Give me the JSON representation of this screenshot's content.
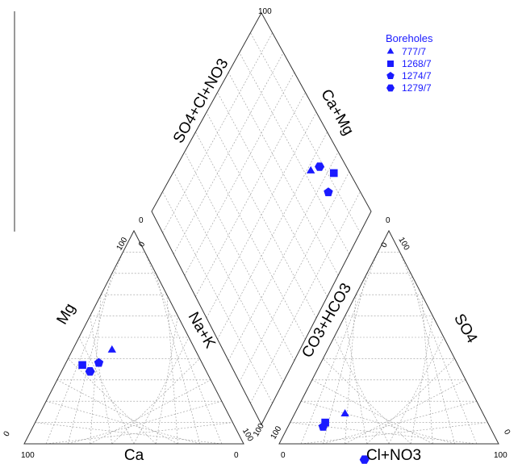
{
  "chart_data": {
    "type": "scatter",
    "subtype": "piper-diagram",
    "grid": true,
    "legend_position": "top-right",
    "marker_color": "#1a1aff",
    "legend": {
      "title": "Boreholes",
      "entries": [
        {
          "name": "777/7",
          "marker": "triangle"
        },
        {
          "name": "1268/7",
          "marker": "square"
        },
        {
          "name": "1274/7",
          "marker": "pentagon"
        },
        {
          "name": "1279/7",
          "marker": "hexagon"
        }
      ]
    },
    "cation_triangle": {
      "labels": {
        "left": "Mg",
        "right": "Na+K",
        "bottom": "Ca"
      },
      "ticks": {
        "top": "100",
        "top_right": "0",
        "left": "0",
        "bottom_left": "100",
        "bottom_right": "0",
        "right": "100"
      }
    },
    "anion_triangle": {
      "labels": {
        "left": "CO3+HCO3",
        "right": "SO4",
        "bottom": "Cl+NO3"
      },
      "ticks": {
        "top_left": "0",
        "top_right": "100",
        "left": "100",
        "bottom_left": "0",
        "bottom_right": "100",
        "right": "0"
      }
    },
    "diamond": {
      "labels": {
        "left": "SO4+Cl+NO3",
        "right": "Ca+Mg"
      },
      "ticks": {
        "top": "100",
        "left": "0",
        "right": "0",
        "bottom": "100"
      }
    },
    "series": [
      {
        "name": "777/7",
        "Ca": 38,
        "Mg": 44,
        "NaK": 18,
        "HCO3": 63,
        "Cl": 23,
        "SO4": 14
      },
      {
        "name": "1268/7",
        "Ca": 55,
        "Mg": 37,
        "NaK": 8,
        "HCO3": 74,
        "Cl": 16,
        "SO4": 10
      },
      {
        "name": "1274/7",
        "Ca": 47,
        "Mg": 38,
        "NaK": 15,
        "HCO3": 76,
        "Cl": 16,
        "SO4": 8
      },
      {
        "name": "1279/7",
        "Ca": 53,
        "Mg": 34,
        "NaK": 13,
        "HCO3": 71,
        "Cl": 31,
        "SO4": 3
      }
    ]
  }
}
